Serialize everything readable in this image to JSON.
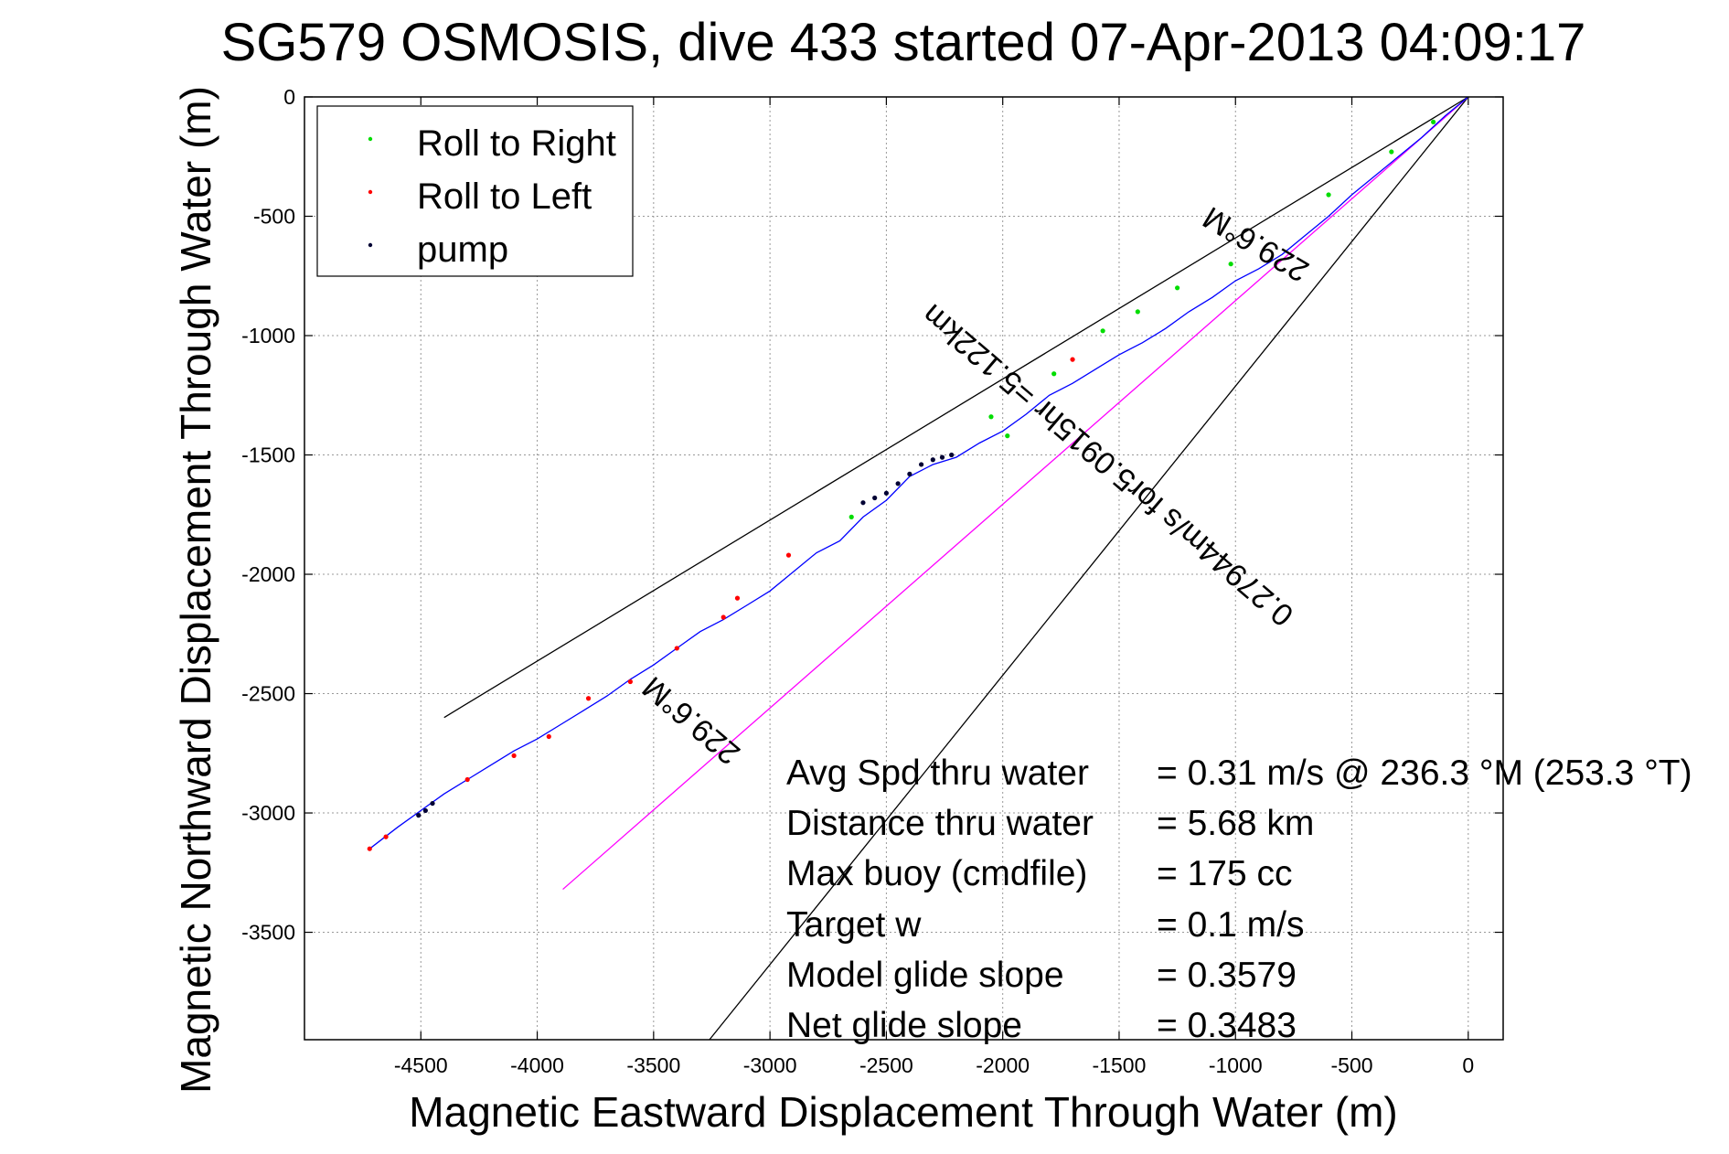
{
  "chart_data": {
    "type": "line",
    "title": "SG579 OSMOSIS, dive 433 started 07-Apr-2013 04:09:17",
    "xlabel": "Magnetic Eastward Displacement Through Water (m)",
    "ylabel": "Magnetic Northward Displacement Through Water (m)",
    "xlim": [
      -5000,
      150
    ],
    "ylim": [
      -3950,
      0
    ],
    "xticks": [
      -4500,
      -4000,
      -3500,
      -3000,
      -2500,
      -2000,
      -1500,
      -1000,
      -500,
      0
    ],
    "yticks": [
      0,
      -500,
      -1000,
      -1500,
      -2000,
      -2500,
      -3000,
      -3500
    ],
    "xtick_labels": [
      "-4500",
      "-4000",
      "-3500",
      "-3000",
      "-2500",
      "-2000",
      "-1500",
      "-1000",
      "-500",
      "0"
    ],
    "ytick_labels": [
      "0",
      "-500",
      "-1000",
      "-1500",
      "-2000",
      "-2500",
      "-3000",
      "-3500"
    ],
    "grid": true,
    "legend_position": "top-left",
    "legend": [
      {
        "label": "Roll to Right",
        "color": "#00dd00"
      },
      {
        "label": "Roll to Left",
        "color": "#ff0000"
      },
      {
        "label": "pump",
        "color": "#000033"
      }
    ],
    "track": {
      "color": "#0000ff",
      "x": [
        0,
        -100,
        -200,
        -300,
        -400,
        -500,
        -600,
        -700,
        -800,
        -900,
        -1000,
        -1100,
        -1200,
        -1300,
        -1400,
        -1500,
        -1600,
        -1700,
        -1800,
        -1900,
        -2000,
        -2100,
        -2200,
        -2300,
        -2400,
        -2500,
        -2600,
        -2700,
        -2800,
        -2900,
        -3000,
        -3100,
        -3200,
        -3300,
        -3400,
        -3500,
        -3600,
        -3700,
        -3800,
        -3900,
        -4000,
        -4100,
        -4200,
        -4300,
        -4400,
        -4500,
        -4600,
        -4720
      ],
      "y": [
        0,
        -80,
        -170,
        -250,
        -330,
        -410,
        -500,
        -580,
        -660,
        -720,
        -770,
        -840,
        -900,
        -970,
        -1030,
        -1080,
        -1140,
        -1200,
        -1250,
        -1330,
        -1400,
        -1450,
        -1510,
        -1540,
        -1590,
        -1690,
        -1760,
        -1860,
        -1910,
        -1990,
        -2070,
        -2130,
        -2190,
        -2240,
        -2310,
        -2380,
        -2440,
        -2510,
        -2570,
        -2630,
        -2690,
        -2740,
        -2800,
        -2860,
        -2920,
        -2990,
        -3060,
        -3150
      ]
    },
    "roll_right_points": {
      "x": [
        -150,
        -330,
        -600,
        -1020,
        -1250,
        -1420,
        -1570,
        -1780,
        -1980,
        -2050,
        -2650
      ],
      "y": [
        -105,
        -230,
        -410,
        -700,
        -800,
        -900,
        -980,
        -1160,
        -1420,
        -1340,
        -1760
      ]
    },
    "roll_left_points": {
      "x": [
        -1700,
        -2920,
        -3140,
        -3200,
        -3400,
        -3600,
        -3780,
        -3950,
        -4100,
        -4300,
        -4650,
        -4720
      ],
      "y": [
        -1100,
        -1920,
        -2100,
        -2180,
        -2310,
        -2450,
        -2520,
        -2680,
        -2760,
        -2860,
        -3100,
        -3150
      ]
    },
    "pump_points": {
      "x": [
        -2220,
        -2260,
        -2300,
        -2350,
        -2400,
        -2450,
        -2500,
        -2550,
        -2600,
        -4450,
        -4480,
        -4510
      ],
      "y": [
        -1500,
        -1510,
        -1520,
        -1540,
        -1580,
        -1620,
        -1660,
        -1680,
        -1700,
        -2960,
        -2990,
        -3010
      ]
    },
    "reference_lines": [
      {
        "color": "#000000",
        "x": [
          0,
          -4400
        ],
        "y": [
          0,
          -2600
        ]
      },
      {
        "color": "#000000",
        "x": [
          0,
          -3260
        ],
        "y": [
          0,
          -3950
        ]
      },
      {
        "color": "#ff00ff",
        "x": [
          0,
          -3890
        ],
        "y": [
          0,
          -3320
        ]
      }
    ],
    "annotations": [
      {
        "text": "229.6°M",
        "x": -890,
        "y": -580
      },
      {
        "text": "0.27944m/s for5.0915hr =5.122km",
        "x": -1520,
        "y": -1510
      },
      {
        "text": "229.6°M",
        "x": -3310,
        "y": -2580
      }
    ],
    "stats": [
      {
        "label": "Avg Spd thru water",
        "value": "=  0.31 m/s @ 236.3 °M (253.3 °T)"
      },
      {
        "label": "Distance thru water",
        "value": "=  5.68 km"
      },
      {
        "label": "Max buoy (cmdfile)",
        "value": "= 175 cc"
      },
      {
        "label": "Target w",
        "value": "= 0.1 m/s"
      },
      {
        "label": "Model glide slope",
        "value": "= 0.3579"
      },
      {
        "label": "Net glide slope",
        "value": "= 0.3483"
      }
    ]
  }
}
